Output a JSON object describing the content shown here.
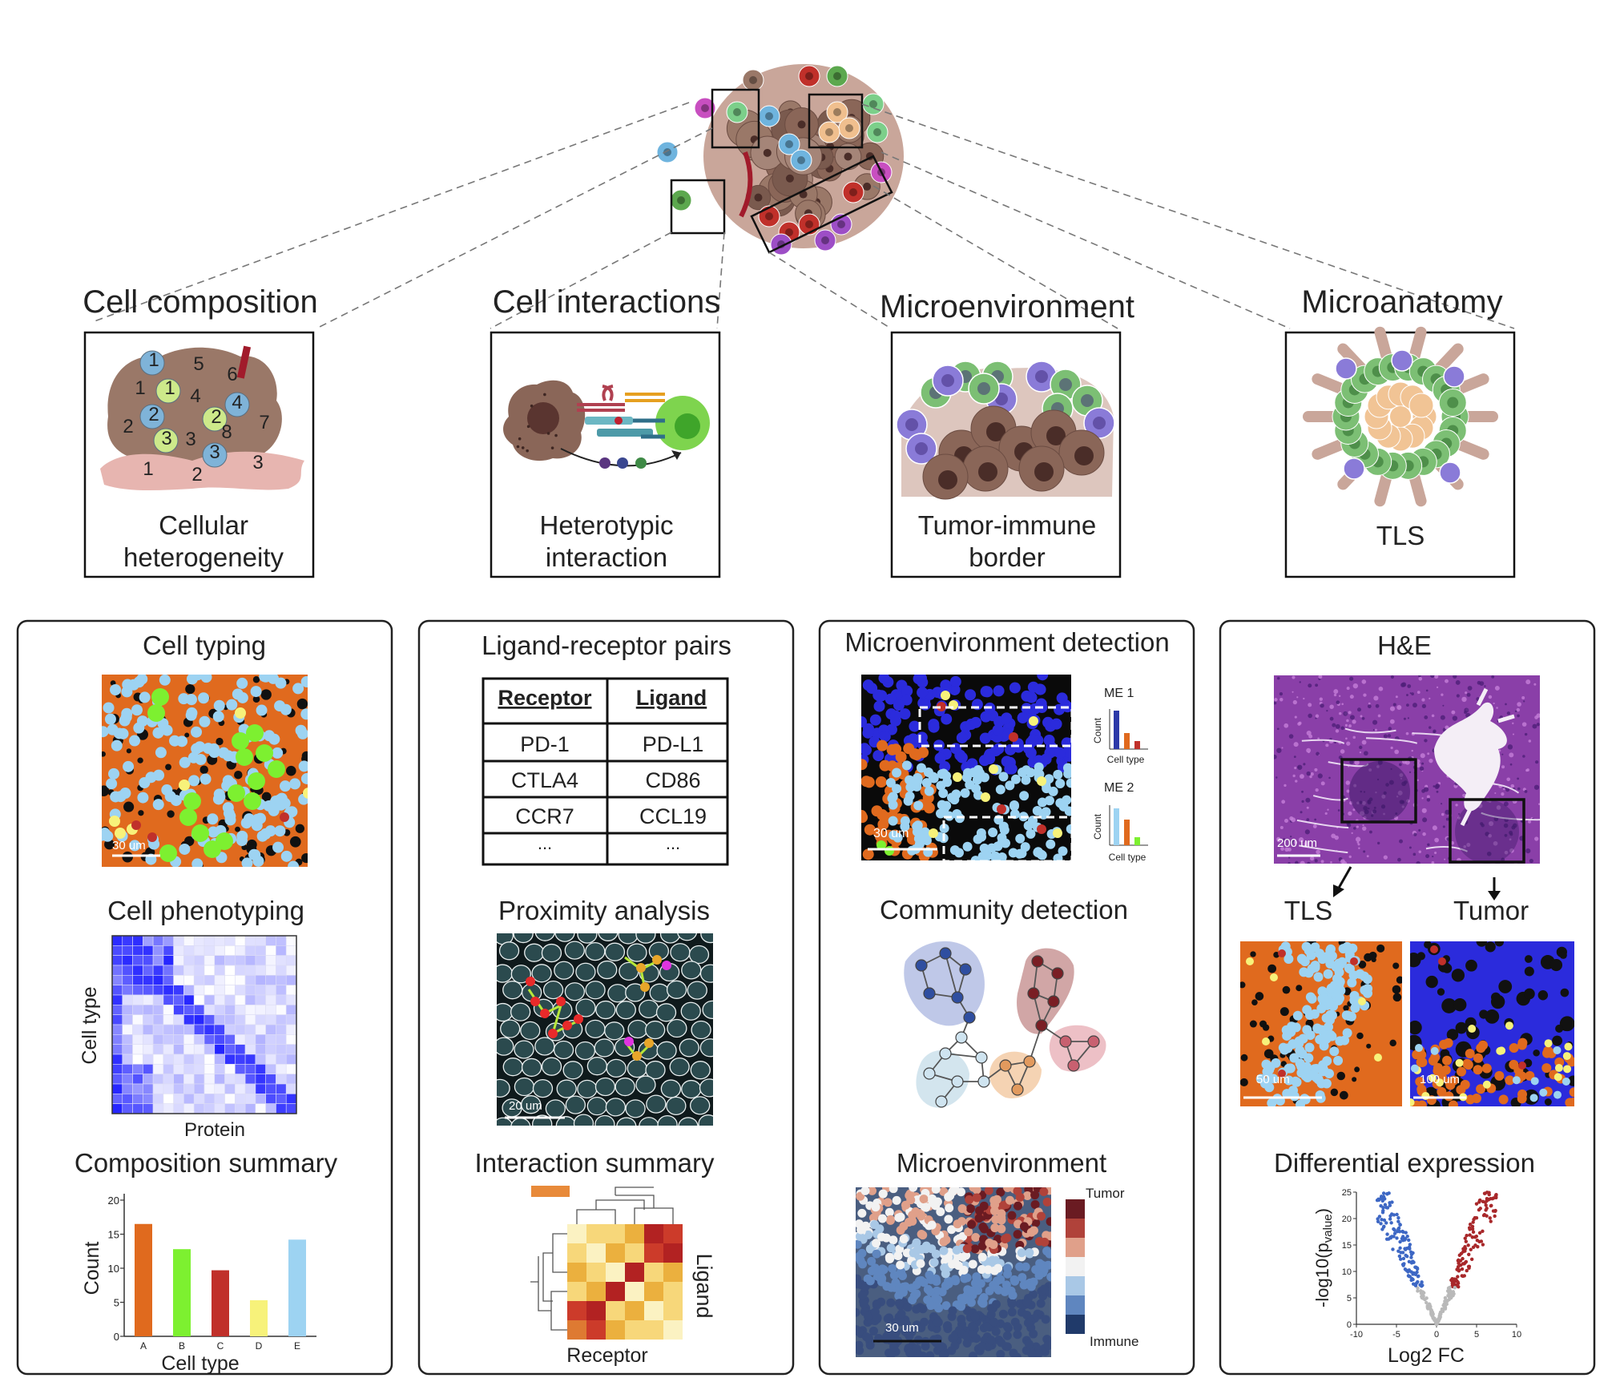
{
  "categories": [
    {
      "title": "Cell composition",
      "caption1": "Cellular",
      "caption2": "heterogeneity"
    },
    {
      "title": "Cell interactions",
      "caption1": "Heterotypic",
      "caption2": "interaction"
    },
    {
      "title": "Microenvironment",
      "caption1": "Tumor-immune",
      "caption2": "border"
    },
    {
      "title": "Microanatomy",
      "caption1": "TLS",
      "caption2": ""
    }
  ],
  "composition_numbers": [
    "1",
    "5",
    "6",
    "1",
    "1",
    "4",
    "4",
    "2",
    "2",
    "7",
    "8",
    "2",
    "3",
    "3",
    "3",
    "3",
    "1",
    "2"
  ],
  "panel1": {
    "typing_title": "Cell typing",
    "typing_scale": "30 um",
    "phenotyping_title": "Cell phenotyping",
    "phenotyping_ylabel": "Cell type",
    "phenotyping_xlabel": "Protein",
    "summary_title": "Composition summary"
  },
  "panel2": {
    "lr_title": "Ligand-receptor pairs",
    "table_headers": [
      "Receptor",
      "Ligand"
    ],
    "table_rows": [
      [
        "PD-1",
        "PD-L1"
      ],
      [
        "CTLA4",
        "CD86"
      ],
      [
        "CCR7",
        "CCL19"
      ],
      [
        "...",
        "..."
      ]
    ],
    "proximity_title": "Proximity analysis",
    "proximity_scale": "20 um",
    "summary_title": "Interaction summary",
    "heatmap_xlabel": "Receptor",
    "heatmap_ylabel": "Ligand"
  },
  "panel3": {
    "detection_title": "Microenvironment detection",
    "detection_scale": "30 um",
    "me1": "ME 1",
    "me2": "ME 2",
    "mini_ylabel": "Count",
    "mini_xlabel": "Cell type",
    "community_title": "Community detection",
    "micro_title": "Microenvironment",
    "micro_scale": "30 um",
    "legend_top": "Tumor",
    "legend_bottom": "Immune"
  },
  "panel4": {
    "he_title": "H&E",
    "he_scale": "200 um",
    "tls_label": "TLS",
    "tumor_label": "Tumor",
    "tls_scale": "50 um",
    "tumor_scale": "100 um",
    "de_title": "Differential expression",
    "volcano_ylabel": "-log10(p",
    "volcano_ysub": "value",
    "volcano_yclose": ")",
    "volcano_xlabel": "Log2 FC"
  },
  "chart_data": [
    {
      "type": "bar",
      "categories": [
        "A",
        "B",
        "C",
        "D",
        "E"
      ],
      "values": [
        16.5,
        12.8,
        9.7,
        5.3,
        14.2
      ],
      "colors": [
        "#e06a1e",
        "#7df030",
        "#c0302a",
        "#f7f27a",
        "#9dd3f2"
      ],
      "xlabel": "Cell type",
      "ylabel": "Count",
      "ylim": [
        0,
        20
      ],
      "yticks": [
        0,
        5,
        10,
        15,
        20
      ]
    },
    {
      "type": "scatter",
      "xlabel": "Log2 FC",
      "xlim": [
        -10,
        10
      ],
      "ylim": [
        0,
        25
      ],
      "xticks": [
        -10,
        -5,
        0,
        5,
        10
      ],
      "yticks": [
        0,
        5,
        10,
        15,
        20,
        25
      ]
    }
  ],
  "colors": {
    "orange": "#e06a1e",
    "green": "#7df030",
    "lightblue": "#9dd3f2",
    "blue": "#2b2bdc",
    "yellow": "#f7f27a",
    "red": "#c0302a",
    "purple": "#9d4ec6"
  }
}
